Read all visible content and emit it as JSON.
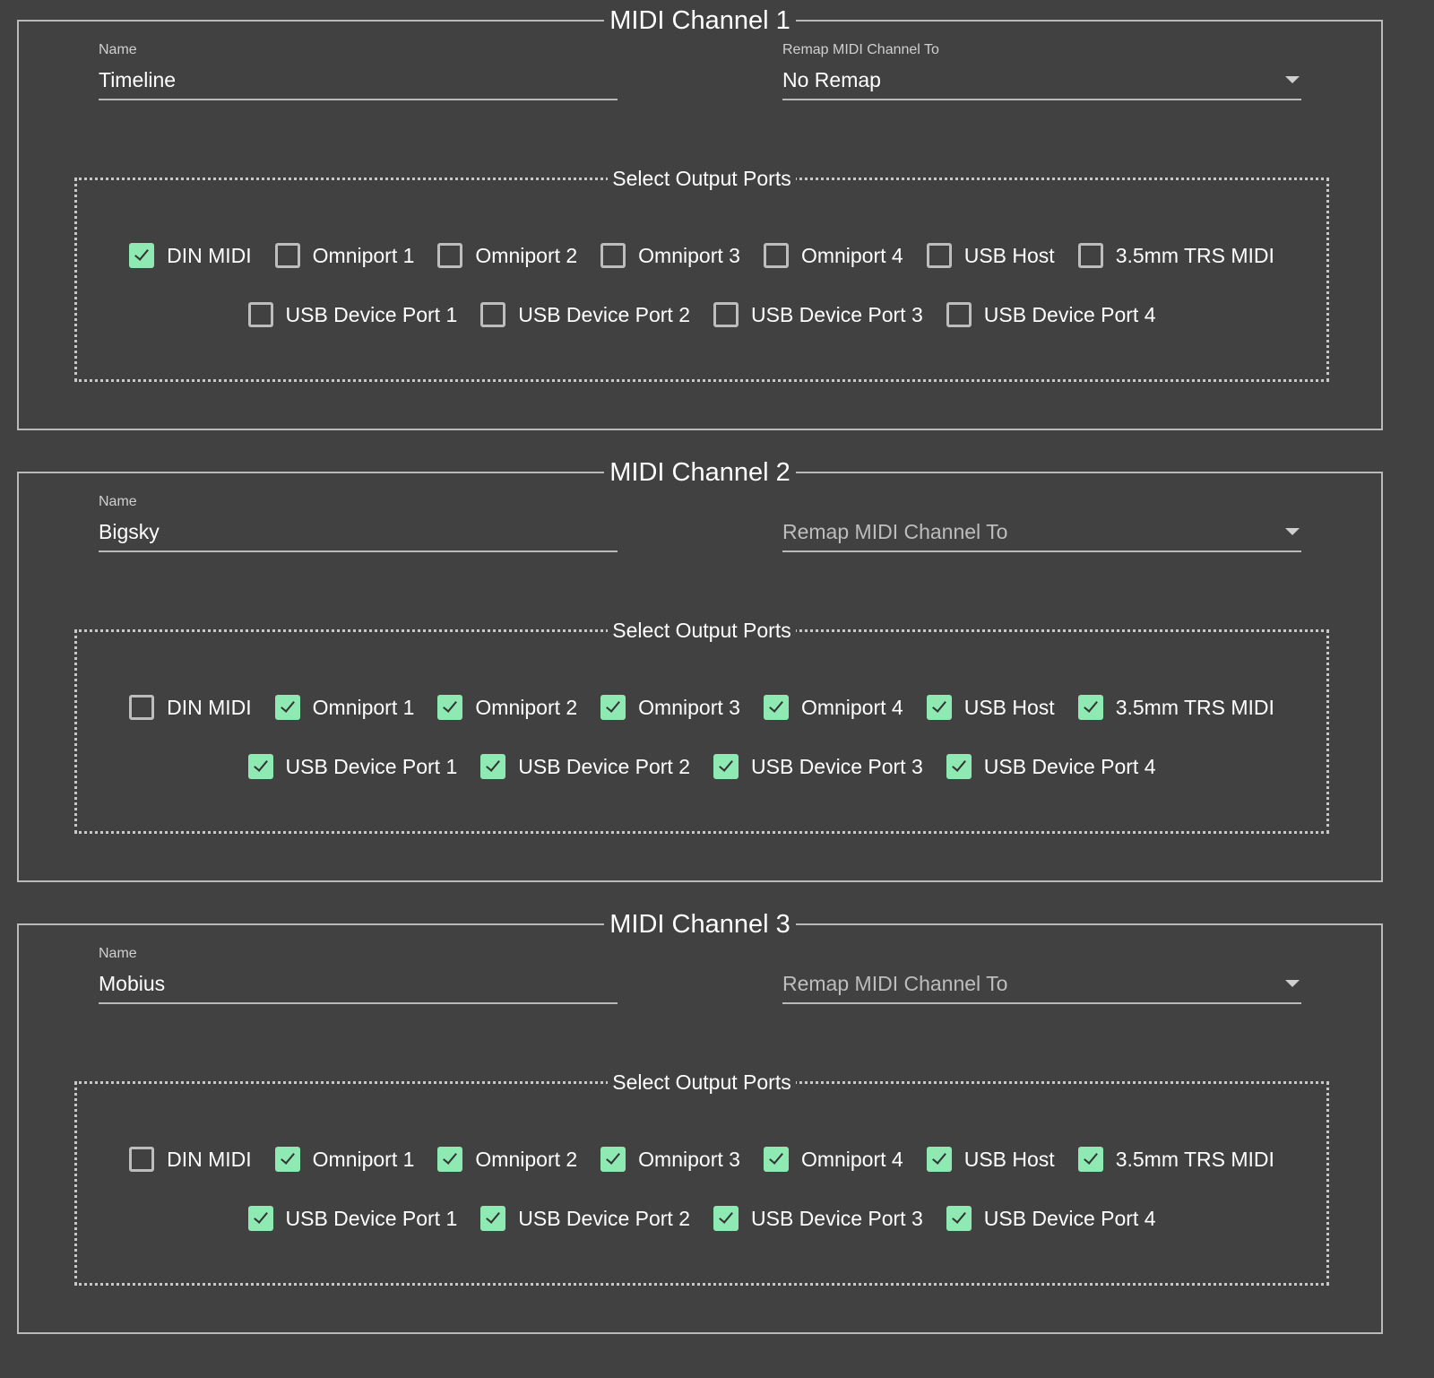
{
  "colors": {
    "background": "#414141",
    "checked": "#8eeab2",
    "border": "#b9b9b9"
  },
  "ports_legend": "Select Output Ports",
  "name_label": "Name",
  "port_labels": [
    "DIN MIDI",
    "Omniport 1",
    "Omniport 2",
    "Omniport 3",
    "Omniport 4",
    "USB Host",
    "3.5mm TRS MIDI",
    "USB Device Port 1",
    "USB Device Port 2",
    "USB Device Port 3",
    "USB Device Port 4"
  ],
  "channels": [
    {
      "title": "MIDI Channel 1",
      "name": "Timeline",
      "remap_label": "Remap MIDI Channel To",
      "remap_value": "No Remap",
      "ports": [
        true,
        false,
        false,
        false,
        false,
        false,
        false,
        false,
        false,
        false,
        false
      ]
    },
    {
      "title": "MIDI Channel 2",
      "name": "Bigsky",
      "remap_label": "",
      "remap_value": "",
      "remap_placeholder": "Remap MIDI Channel To",
      "ports": [
        false,
        true,
        true,
        true,
        true,
        true,
        true,
        true,
        true,
        true,
        true
      ]
    },
    {
      "title": "MIDI Channel 3",
      "name": "Mobius",
      "remap_label": "",
      "remap_value": "",
      "remap_placeholder": "Remap MIDI Channel To",
      "ports": [
        false,
        true,
        true,
        true,
        true,
        true,
        true,
        true,
        true,
        true,
        true
      ]
    }
  ]
}
